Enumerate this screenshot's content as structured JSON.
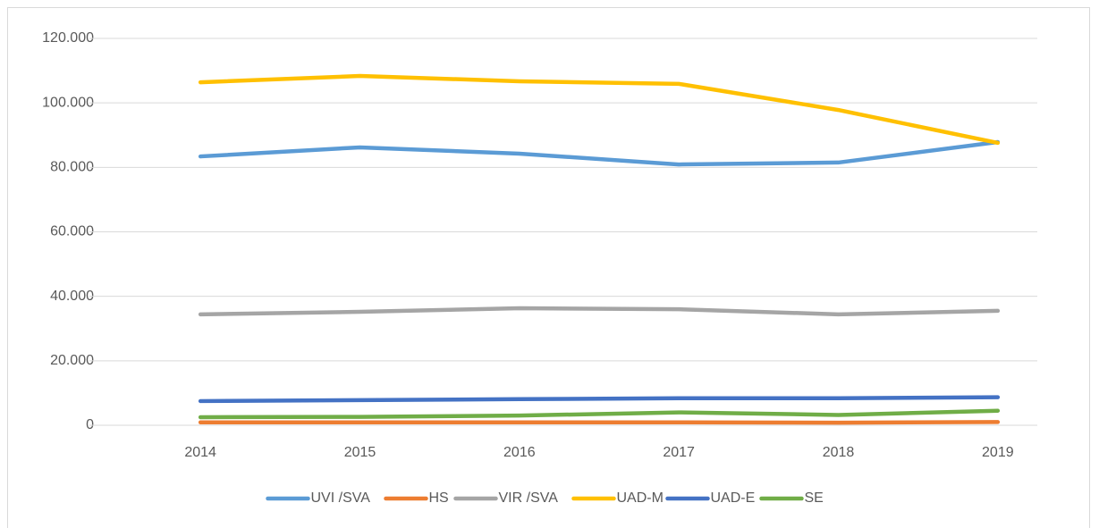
{
  "chart_data": {
    "type": "line",
    "categories": [
      "2014",
      "2015",
      "2016",
      "2017",
      "2018",
      "2019"
    ],
    "series": [
      {
        "name": "UVI /SVA",
        "color": "#5b9bd5",
        "values": [
          83400,
          86200,
          84250,
          80900,
          81500,
          87850
        ]
      },
      {
        "name": "HS",
        "color": "#ed7d31",
        "values": [
          900,
          900,
          900,
          900,
          800,
          1000
        ]
      },
      {
        "name": "VIR /SVA",
        "color": "#a5a5a5",
        "values": [
          34400,
          35200,
          36300,
          36000,
          34400,
          35500
        ]
      },
      {
        "name": "UAD-M",
        "color": "#ffc000",
        "values": [
          106400,
          108350,
          106700,
          105900,
          97800,
          87600
        ]
      },
      {
        "name": "UAD-E",
        "color": "#4472c4",
        "values": [
          7500,
          7800,
          8100,
          8400,
          8400,
          8700
        ]
      },
      {
        "name": "SE",
        "color": "#70ad47",
        "values": [
          2500,
          2600,
          3000,
          4000,
          3200,
          4500
        ]
      }
    ],
    "ylim": [
      0,
      120000
    ],
    "yticks": [
      0,
      {
        "value": 20000,
        "label": "20.000"
      },
      {
        "value": 40000,
        "label": "40.000"
      },
      {
        "value": 60000,
        "label": "60.000"
      },
      {
        "value": 80000,
        "label": "80.000"
      },
      {
        "value": 100000,
        "label": "100.000"
      },
      {
        "value": 120000,
        "label": "120.000"
      }
    ],
    "grid": true,
    "legend": "bottom"
  }
}
